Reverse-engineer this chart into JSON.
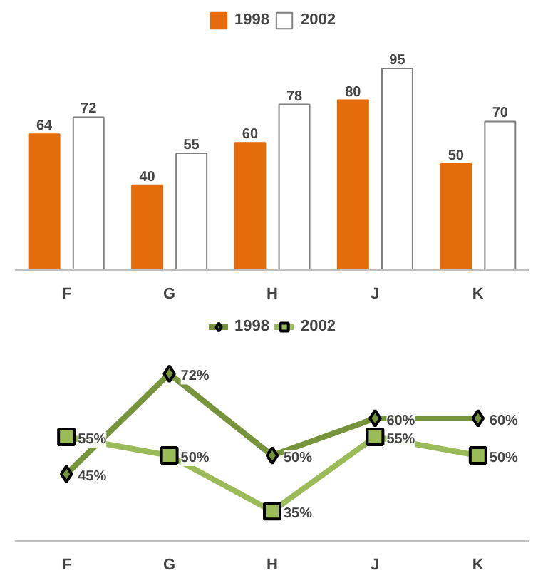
{
  "chart_data": [
    {
      "type": "bar",
      "categories": [
        "F",
        "G",
        "H",
        "J",
        "K"
      ],
      "series": [
        {
          "name": "1998",
          "color": "#e46c0a",
          "values": [
            64,
            40,
            60,
            80,
            50
          ]
        },
        {
          "name": "2002",
          "color": "#ffffff",
          "values": [
            72,
            55,
            78,
            95,
            70
          ]
        }
      ],
      "data_labels": true,
      "legend": "top",
      "grid": false
    },
    {
      "type": "line",
      "categories": [
        "F",
        "G",
        "H",
        "J",
        "K"
      ],
      "series": [
        {
          "name": "1998",
          "color": "#77933c",
          "marker": "diamond",
          "values": [
            45,
            72,
            50,
            60,
            60
          ],
          "value_labels": [
            "45%",
            "72%",
            "50%",
            "60%",
            "60%"
          ]
        },
        {
          "name": "2002",
          "color": "#9bbb59",
          "marker": "square",
          "values": [
            55,
            50,
            35,
            55,
            50
          ],
          "value_labels": [
            "55%",
            "50%",
            "35%",
            "55%",
            "50%"
          ]
        }
      ],
      "legend": "top",
      "grid": false,
      "line_style": "solid"
    }
  ]
}
